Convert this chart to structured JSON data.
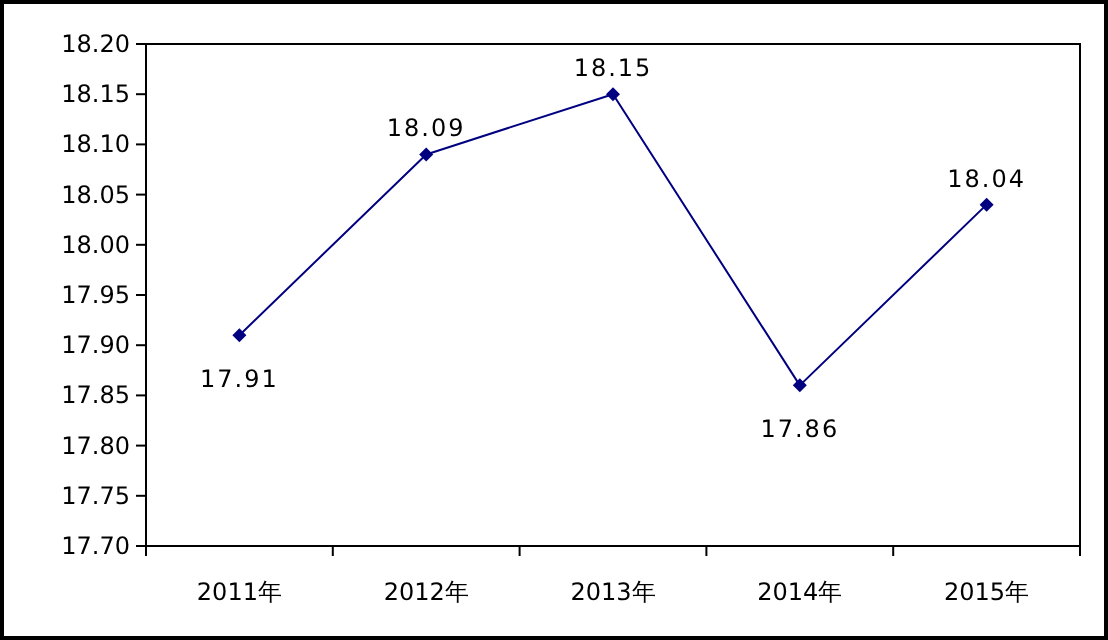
{
  "chart_data": {
    "type": "line",
    "categories": [
      "2011年",
      "2012年",
      "2013年",
      "2014年",
      "2015年"
    ],
    "values": [
      17.91,
      18.09,
      18.15,
      17.86,
      18.04
    ],
    "color": "#000080",
    "marker": "diamond",
    "data_labels": true,
    "ylim": [
      17.7,
      18.2
    ],
    "yticks": [
      {
        "value": 17.7,
        "label": "17.70"
      },
      {
        "value": 17.75,
        "label": "17.75"
      },
      {
        "value": 17.8,
        "label": "17.80"
      },
      {
        "value": 17.85,
        "label": "17.85"
      },
      {
        "value": 17.9,
        "label": "17.90"
      },
      {
        "value": 17.95,
        "label": "17.95"
      },
      {
        "value": 18.0,
        "label": "18.00"
      },
      {
        "value": 18.05,
        "label": "18.05"
      },
      {
        "value": 18.1,
        "label": "18.10"
      },
      {
        "value": 18.15,
        "label": "18.15"
      },
      {
        "value": 18.2,
        "label": "18.20"
      }
    ]
  }
}
